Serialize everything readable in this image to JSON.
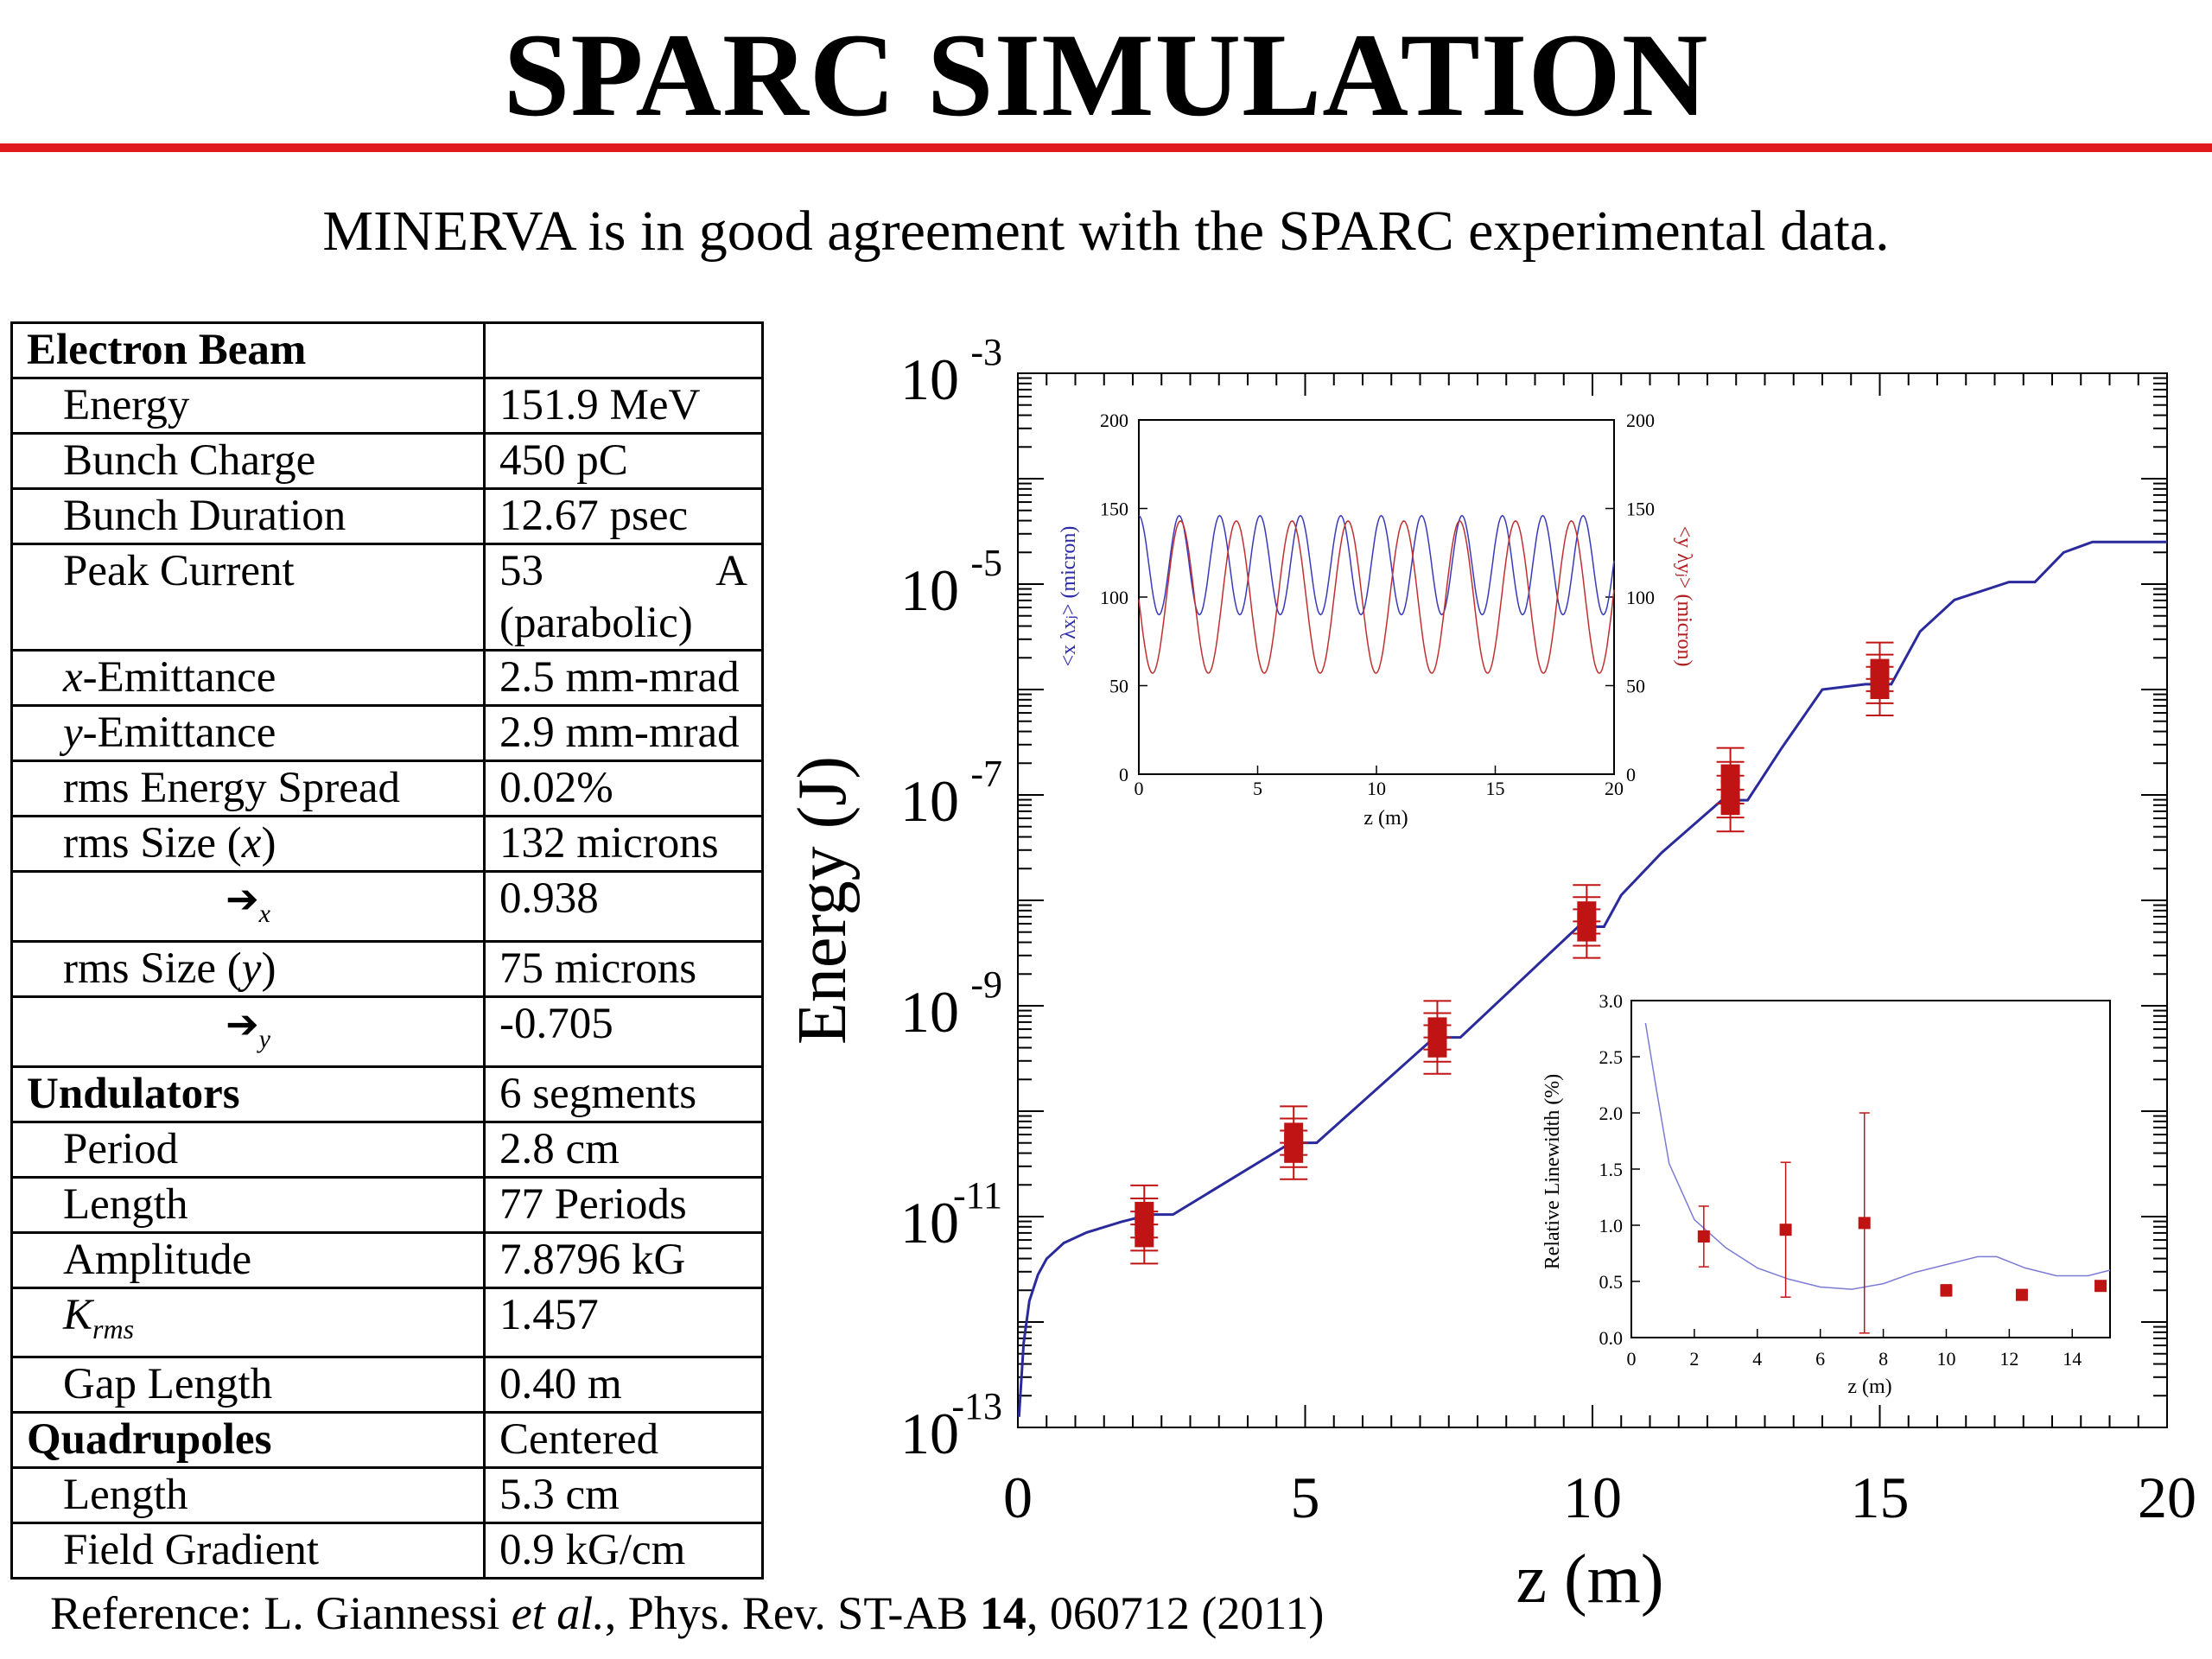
{
  "slide": {
    "title": "SPARC SIMULATION",
    "subtitle": "MINERVA is in good agreement with the SPARC experimental data.",
    "reference": {
      "prefix": "Reference: L. Giannessi ",
      "etal": "et al.",
      "journal": ", Phys. Rev. ST-AB ",
      "volume": "14",
      "rest": ", 060712 (2011)"
    },
    "colors": {
      "rule": "#e01a1a",
      "sim": "#2a2a9c",
      "data": "#c01414"
    }
  },
  "table": {
    "rows": [
      {
        "label": "Electron Beam",
        "value": "",
        "kind": "section"
      },
      {
        "label": "Energy",
        "value": "151.9 MeV"
      },
      {
        "label": "Bunch Charge",
        "value": "450 pC"
      },
      {
        "label": "Bunch Duration",
        "value": "12.67 psec"
      },
      {
        "label": "Peak Current",
        "value": "53",
        "unit": "A",
        "value2": "(parabolic)",
        "kind": "peak"
      },
      {
        "label_italic": "x",
        "label": "-Emittance",
        "value": "2.5 mm-mrad",
        "kind": "italic-prefix"
      },
      {
        "label_italic": "y",
        "label": "-Emittance",
        "value": "2.9 mm-mrad",
        "kind": "italic-prefix"
      },
      {
        "label": "rms Energy Spread",
        "value": "0.02%"
      },
      {
        "label": "rms Size (",
        "label_italic": "x",
        "label_end": ")",
        "value": "132 microns",
        "kind": "italic-mid"
      },
      {
        "label": "➔",
        "sub": "x",
        "value": "0.938",
        "kind": "symbol"
      },
      {
        "label": "rms Size (",
        "label_italic": "y",
        "label_end": ")",
        "value": "75 microns",
        "kind": "italic-mid"
      },
      {
        "label": "➔",
        "sub": "y",
        "value": "-0.705",
        "kind": "symbol"
      },
      {
        "label": "Undulators",
        "value": "6 segments",
        "kind": "section"
      },
      {
        "label": "Period",
        "value": "2.8 cm"
      },
      {
        "label": "Length",
        "value": "77 Periods"
      },
      {
        "label": "Amplitude",
        "value": "7.8796 kG"
      },
      {
        "label": "K",
        "sub": "rms",
        "value": "1.457",
        "kind": "k"
      },
      {
        "label": "Gap Length",
        "value": "0.40 m"
      },
      {
        "label": "Quadrupoles",
        "value": "Centered",
        "kind": "section"
      },
      {
        "label": "Length",
        "value": "5.3 cm"
      },
      {
        "label": "Field Gradient",
        "value": "0.9 kG/cm"
      }
    ]
  },
  "chart_data": [
    {
      "type": "line",
      "id": "main",
      "xlabel": "z (m)",
      "ylabel": "Energy (J)",
      "xlim": [
        0,
        20
      ],
      "ylim_exp": [
        -13,
        -3
      ],
      "yscale": "log",
      "x_ticks": [
        "0",
        "5",
        "10",
        "15",
        "20"
      ],
      "y_ticks": [
        {
          "base": "10",
          "exp": "-13"
        },
        {
          "base": "10",
          "exp": "-11"
        },
        {
          "base": "10",
          "exp": "-9"
        },
        {
          "base": "10",
          "exp": "-7"
        },
        {
          "base": "10",
          "exp": "-5"
        },
        {
          "base": "10",
          "exp": "-3"
        }
      ],
      "series": [
        {
          "style": "line",
          "x": [
            0.02,
            0.1,
            0.2,
            0.35,
            0.5,
            0.8,
            1.2,
            1.8,
            2.3,
            2.5,
            2.7,
            4.75,
            5.0,
            5.2,
            7.25,
            7.5,
            7.7,
            9.75,
            10.0,
            10.2,
            10.5,
            11.2,
            12.25,
            12.5,
            12.7,
            13.3,
            14.0,
            14.75,
            15.0,
            15.2,
            15.7,
            16.3,
            17.25,
            17.5,
            17.7,
            18.2,
            18.7,
            20.0
          ],
          "log10_y": [
            -12.9,
            -12.2,
            -11.8,
            -11.55,
            -11.4,
            -11.25,
            -11.15,
            -11.05,
            -10.98,
            -10.98,
            -10.98,
            -10.3,
            -10.3,
            -10.3,
            -9.3,
            -9.3,
            -9.3,
            -8.25,
            -8.25,
            -8.25,
            -7.95,
            -7.55,
            -7.05,
            -7.05,
            -7.05,
            -6.55,
            -6.0,
            -5.95,
            -5.95,
            -5.95,
            -5.45,
            -5.15,
            -4.98,
            -4.98,
            -4.98,
            -4.7,
            -4.6,
            -4.6
          ]
        },
        {
          "style": "errorbar",
          "points": [
            {
              "x": 2.2,
              "log10_y": [
                -11.2,
                -11.08,
                -10.95
              ]
            },
            {
              "x": 4.8,
              "log10_y": [
                -10.4,
                -10.3,
                -10.2
              ]
            },
            {
              "x": 7.3,
              "log10_y": [
                -9.2,
                -9.3,
                -9.4
              ]
            },
            {
              "x": 9.9,
              "log10_y": [
                -8.1,
                -8.2,
                -8.3
              ]
            },
            {
              "x": 12.4,
              "log10_y": [
                -7.1,
                -6.95,
                -6.8
              ]
            },
            {
              "x": 15.0,
              "log10_y": [
                -6.0,
                -5.9,
                -5.8
              ]
            }
          ]
        }
      ]
    },
    {
      "type": "line",
      "id": "inset-top",
      "xlabel": "z (m)",
      "ylabel_left": "<x λxⱼ> (micron)",
      "ylabel_right": "<y λyⱼ> (micron)",
      "xlim": [
        0,
        20
      ],
      "ylim": [
        0,
        200
      ],
      "x_ticks": [
        "0",
        "5",
        "10",
        "15",
        "20"
      ],
      "y_ticks": [
        "0",
        "50",
        "100",
        "150",
        "200"
      ],
      "series": [
        {
          "axis": "left",
          "mean": 118,
          "amp": 28,
          "wavelength": 1.7,
          "phase": 0
        },
        {
          "axis": "right",
          "mean": 100,
          "amp": 43,
          "wavelength": 2.35,
          "phase": 1.6
        }
      ]
    },
    {
      "type": "scatter",
      "id": "inset-bottom",
      "xlabel": "z (m)",
      "ylabel": "Relative Linewidth (%)",
      "xlim": [
        0,
        15.2
      ],
      "ylim": [
        0,
        3.0
      ],
      "x_ticks": [
        "0",
        "2",
        "4",
        "6",
        "8",
        "10",
        "12",
        "14"
      ],
      "y_ticks": [
        "0.0",
        "0.5",
        "1.0",
        "1.5",
        "2.0",
        "2.5",
        "3.0"
      ],
      "series": [
        {
          "style": "line",
          "x": [
            0.45,
            0.8,
            1.2,
            2.0,
            3.0,
            4.0,
            5.0,
            6.0,
            7.0,
            8.0,
            9.0,
            10.0,
            11.0,
            11.6,
            12.5,
            13.5,
            14.5,
            15.2
          ],
          "y": [
            2.8,
            2.2,
            1.55,
            1.05,
            0.8,
            0.62,
            0.52,
            0.45,
            0.43,
            0.48,
            0.58,
            0.65,
            0.72,
            0.72,
            0.62,
            0.55,
            0.55,
            0.6
          ]
        },
        {
          "style": "points",
          "x": [
            2.3,
            4.9,
            7.4,
            10.0,
            12.4,
            14.9
          ],
          "y": [
            0.9,
            0.96,
            1.02,
            0.42,
            0.38,
            0.46
          ],
          "err": [
            0.27,
            0.6,
            0.98,
            0.05,
            0.04,
            0.04
          ]
        }
      ]
    }
  ]
}
